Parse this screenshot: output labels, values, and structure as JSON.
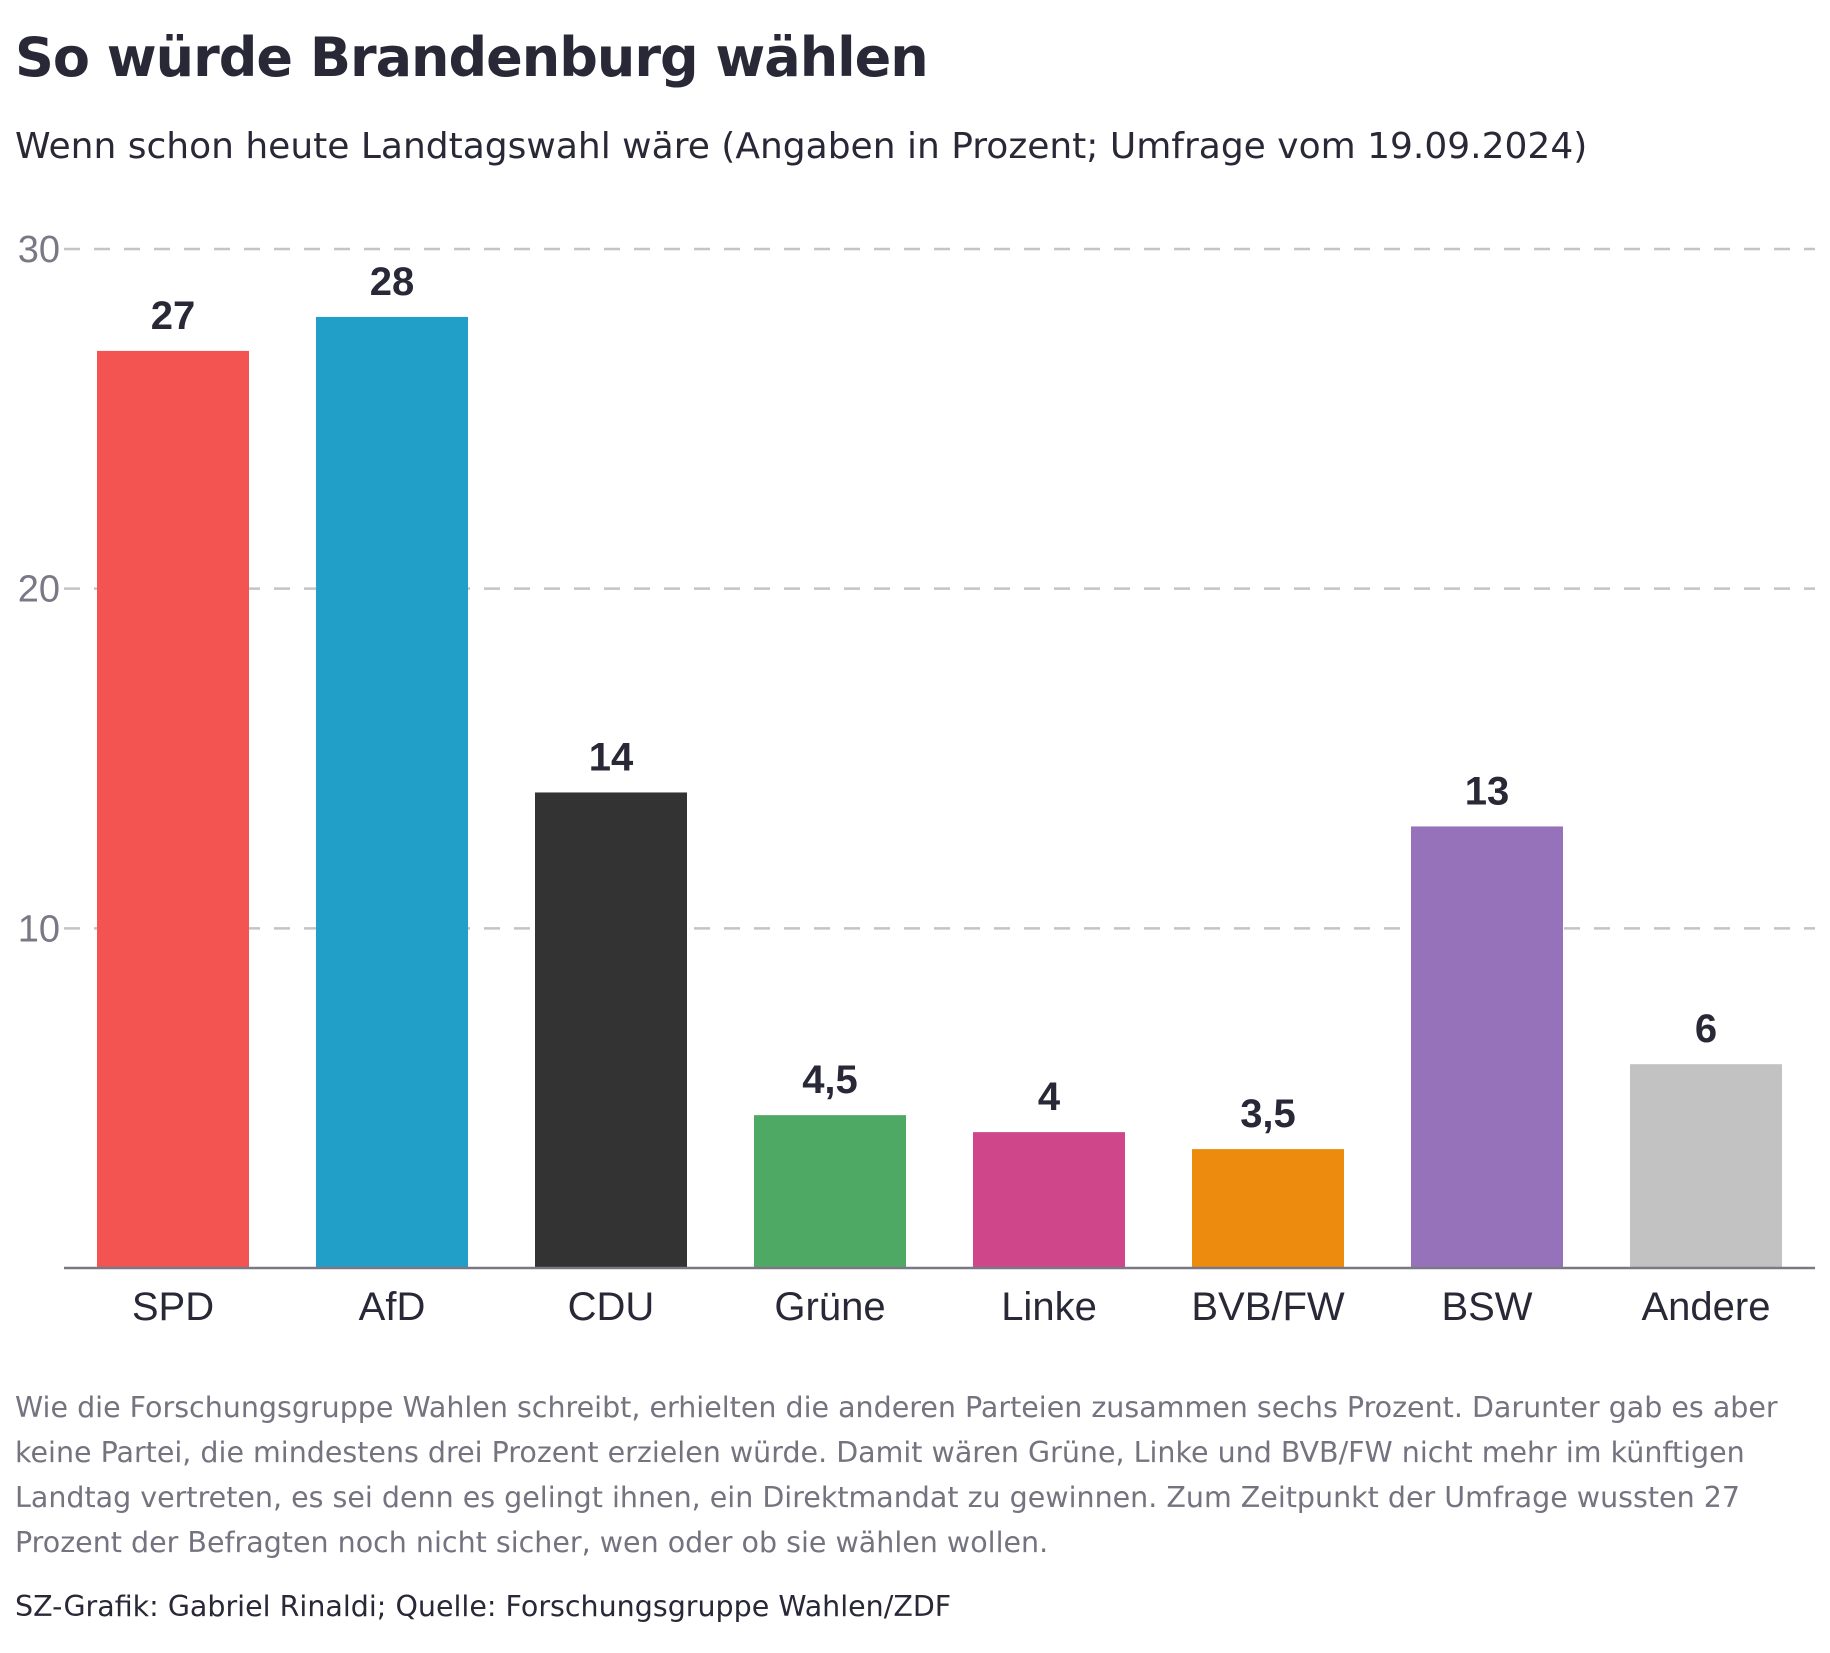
{
  "header": {
    "title": "So würde Brandenburg wählen",
    "subtitle": "Wenn schon heute Landtagswahl wäre (Angaben in Prozent; Umfrage vom 19.09.2024)"
  },
  "chart_data": {
    "type": "bar",
    "categories": [
      "SPD",
      "AfD",
      "CDU",
      "Grüne",
      "Linke",
      "BVB/FW",
      "BSW",
      "Andere"
    ],
    "values": [
      27,
      28,
      14,
      4.5,
      4,
      3.5,
      13,
      6
    ],
    "value_labels": [
      "27",
      "28",
      "14",
      "4,5",
      "4",
      "3,5",
      "13",
      "6"
    ],
    "colors": [
      "#f35452",
      "#229fc9",
      "#333333",
      "#4ea965",
      "#cf468a",
      "#ec8b0e",
      "#9672bb",
      "#c2c2c2"
    ],
    "yticks": [
      "10",
      "20",
      "30"
    ],
    "ylim": [
      0,
      30
    ],
    "grid": true,
    "grid_style": "dashed",
    "title": "So würde Brandenburg wählen",
    "xlabel": "",
    "ylabel": ""
  },
  "footer": {
    "note": "Wie die Forschungsgruppe Wahlen schreibt, erhielten die anderen Parteien zusammen sechs Prozent. Darunter gab es aber keine Partei, die mindestens drei Prozent erzielen würde. Damit wären Grüne, Linke und BVB/FW nicht mehr im künftigen Landtag vertreten, es sei denn es gelingt ihnen, ein Direktmandat zu gewinnen. Zum Zeitpunkt der Umfrage wussten 27 Prozent der Befragten noch nicht sicher, wen oder ob sie wählen wollen.",
    "source": "SZ-Grafik: Gabriel Rinaldi; Quelle: Forschungsgruppe Wahlen/ZDF"
  }
}
